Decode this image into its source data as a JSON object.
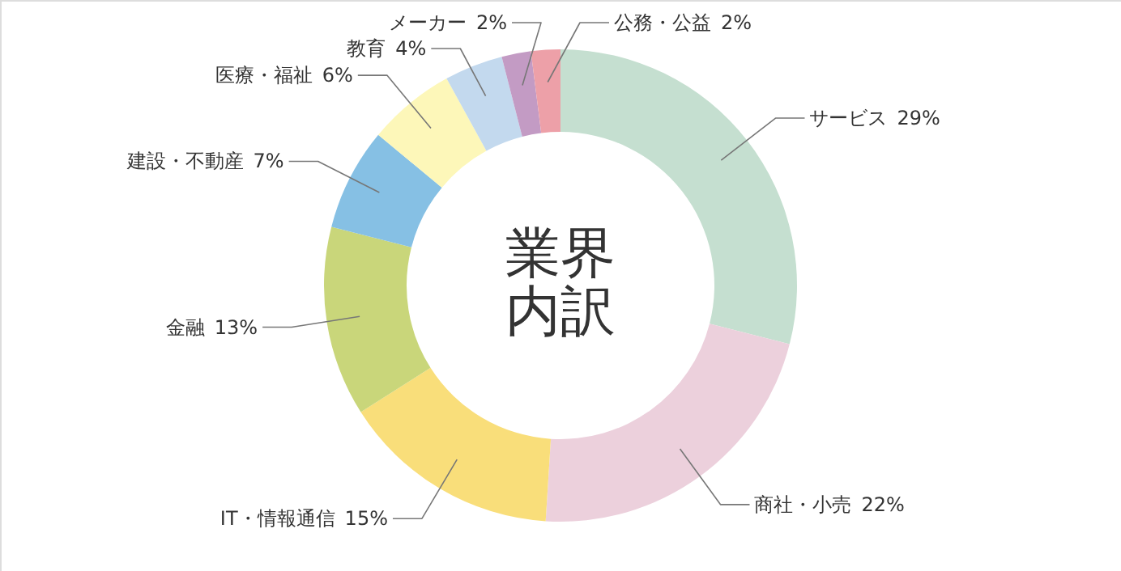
{
  "chart_data": {
    "type": "donut",
    "title": "業界内訳",
    "categories": [
      "サービス",
      "商社・小売",
      "IT・情報通信",
      "金融",
      "建設・不動産",
      "医療・福祉",
      "教育",
      "メーカー",
      "公務・公益"
    ],
    "values": [
      29,
      22,
      15,
      13,
      7,
      6,
      4,
      2,
      2
    ],
    "value_labels": [
      "29%",
      "22%",
      "15%",
      "13%",
      "7%",
      "6%",
      "4%",
      "2%",
      "2%"
    ],
    "colors": [
      "#c5dfd0",
      "#ecd0dc",
      "#f9de7a",
      "#c9d67a",
      "#86c0e4",
      "#fdf7b9",
      "#c3d9ee",
      "#c39bc4",
      "#eda0a8"
    ],
    "legend": false
  }
}
